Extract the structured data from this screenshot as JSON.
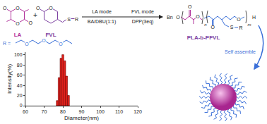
{
  "scheme": {
    "monomers": [
      {
        "label": "LA",
        "color": "#b0309a"
      },
      {
        "label": "FVL",
        "color": "#7b3fa0"
      }
    ],
    "plus": "+",
    "arrow": {
      "above": [
        "LA mode",
        "FVL mode"
      ],
      "below": [
        "BA/DBU(1:1)",
        "DPP(3eq)"
      ]
    },
    "atoms": {
      "oxygen": "O",
      "sulfur": "S",
      "substituent": "R",
      "benzyl": "Bn",
      "hydrogen": "H",
      "repeat_1": "n",
      "repeat_2": "m"
    },
    "product": "PLA-b-PFVL",
    "r_definition": "R =",
    "self_assembly": "Self assemble"
  },
  "chart_data": {
    "type": "bar",
    "x": [
      77,
      78,
      79,
      80,
      81,
      82,
      83
    ],
    "values": [
      10,
      55,
      93,
      100,
      88,
      58,
      20
    ],
    "color": "#e8231d",
    "xlim": [
      60,
      120
    ],
    "xticks": [
      60,
      70,
      80,
      90,
      100,
      110,
      120
    ],
    "ylim": [
      0,
      105
    ],
    "yticks": [
      0,
      20,
      40,
      60,
      80,
      100
    ],
    "x_label": "Diameter(nm)",
    "y_label": "Intensity(%)",
    "grid": false
  }
}
